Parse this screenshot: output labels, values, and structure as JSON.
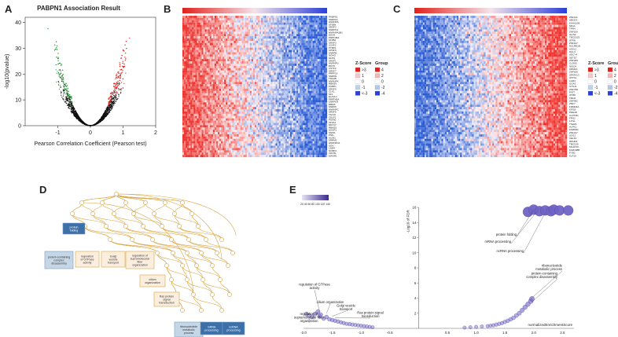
{
  "panels": {
    "a": "A",
    "b": "B",
    "c": "C",
    "d": "D",
    "e": "E"
  },
  "colors": {
    "red": "#e0201b",
    "blue": "#2c3fd6",
    "green": "#1d8a2e",
    "tan": "#d9a441",
    "node_blue": "#3d6fa8",
    "node_lightblue": "#c5d7e6",
    "node_cream": "#fbeede",
    "bubble": "#6f63c4"
  },
  "chart_data": [
    {
      "id": "A",
      "type": "scatter",
      "title": "PABPN1 Association Result",
      "xlabel": "Pearson Correlation Coefficient (Pearson test)",
      "ylabel": "-log10(pvalue)",
      "xlim": [
        -2,
        2
      ],
      "ylim": [
        0,
        42
      ],
      "xticks": [
        "-1",
        "0",
        "1",
        "2"
      ],
      "yticks": [
        "0",
        "10",
        "20",
        "30",
        "40"
      ],
      "series": [
        {
          "color": "#1d8a2e",
          "side": "negative"
        },
        {
          "color": "#e0201b",
          "side": "positive"
        },
        {
          "color": "#111111",
          "side": "not significant"
        }
      ]
    },
    {
      "id": "B",
      "type": "heatmap",
      "legend_zscore_title": "Z-Score",
      "legend_group_title": "Group",
      "zscore_items": [
        ">3",
        "1",
        "0",
        "-1",
        "<-3"
      ],
      "group_items": [
        "4",
        "2",
        "0",
        "-2",
        "-4"
      ],
      "gene_labels": [
        "PABPN1",
        "SNRPA1",
        "HNRNPA",
        "SF3B4",
        "SRSF2",
        "SNRPD1",
        "HNRNPA2B1",
        "DHX9",
        "PRPF38A",
        "SF3B2",
        "SRSF3",
        "U2AF1",
        "PTBP1",
        "CPSF6",
        "SNRPB",
        "NONO",
        "SFPQ",
        "SRSF1",
        "HNRNPU",
        "DDX5",
        "CSTF2",
        "SRSF7",
        "PRPF19",
        "SNRPE",
        "TRA2B",
        "HNRNPK",
        "RBM39",
        "PCBP1",
        "SRSF9",
        "CLK1",
        "SF1",
        "ELAVL1",
        "PRPF40A",
        "SNRPD3",
        "RBMX",
        "SNRPF",
        "HNRNPC",
        "SRSF6",
        "TAF15",
        "CELF1",
        "PUF60",
        "SF3A1",
        "DDX17",
        "RBM25",
        "SUGP1",
        "SNW1",
        "PNN",
        "ACIN1",
        "SRRM1",
        "HNRNPH1",
        "SON",
        "LSM4",
        "NCBP2",
        "CDC5L",
        "EWSR1"
      ]
    },
    {
      "id": "C",
      "type": "heatmap",
      "legend_zscore_title": "Z-Score",
      "legend_group_title": "Group",
      "zscore_items": [
        ">3",
        "1",
        "0",
        "-1",
        "<-3"
      ],
      "group_items": [
        "4",
        "2",
        "0",
        "-2",
        "-4"
      ],
      "gene_labels": [
        "ZNF141",
        "ABCD3",
        "KIAA1109",
        "MIGA",
        "TPR4",
        "ZNF100",
        "GLIS2",
        "TBC1D23",
        "ATRN",
        "ZNF197",
        "DCLRE1B",
        "ASXL1",
        "DCL4",
        "ADCY4",
        "SETD7",
        "ZNF266",
        "CLDN3",
        "NISCH",
        "KDM4A",
        "ZNF629",
        "SPATA13",
        "ATP7A",
        "LGR4",
        "GGA3",
        "SYNJ2",
        "ZNF75D",
        "PIGT",
        "IFT88",
        "TMC6",
        "ZNF592",
        "ZNF7",
        "FRMD4A",
        "KIF1B",
        "PDE4D",
        "CLPTM1",
        "FRS2",
        "LIX1L",
        "TSHZ1",
        "ALPK1",
        "FAM83G",
        "ZNF217",
        "SOS1",
        "CELF2",
        "DDHD2",
        "TBC1D9",
        "MGAT4C",
        "FAM168B",
        "FYB2",
        "KLF16"
      ]
    },
    {
      "id": "D",
      "type": "diagram",
      "nodes_highlighted": [
        {
          "label": "protein folding",
          "style": "blue"
        },
        {
          "label": "protein-containing complex disassembly",
          "style": "lightblue"
        },
        {
          "label": "regulation of GTPase activity",
          "style": "cream"
        },
        {
          "label": "Golgi vesicle transport",
          "style": "cream"
        },
        {
          "label": "regulation of supramolecular fiber organization",
          "style": "cream"
        },
        {
          "label": "cilium organization",
          "style": "cream"
        },
        {
          "label": "Ras protein signal transduction",
          "style": "cream"
        },
        {
          "label": "ribonucleotide metabolic process",
          "style": "lightblue"
        },
        {
          "label": "mRNA processing",
          "style": "blue"
        },
        {
          "label": "ncRNA processing",
          "style": "blue"
        }
      ]
    },
    {
      "id": "E",
      "type": "scatter",
      "xlabel": "normalizedEnrichmentScore",
      "ylabel": "-Log10 of FDR",
      "xlim": [
        -2.0,
        2.7
      ],
      "ylim": [
        0,
        16
      ],
      "xticks": [
        "-2.0",
        "-1.5",
        "-1.0",
        "-0.5",
        "0.5",
        "1.0",
        "1.5",
        "2.0",
        "2.5"
      ],
      "yticks": [
        "2",
        "4",
        "6",
        "8",
        "10",
        "12",
        "14",
        "16"
      ],
      "colorbar_label": "20 40 60 80 100 120 140",
      "annotations": [
        {
          "label": "protein folding",
          "x": 2.0,
          "y": 15.7
        },
        {
          "label": "mRNA processing",
          "x": 2.05,
          "y": 15.4
        },
        {
          "label": "ncRNA processing",
          "x": 2.2,
          "y": 15.3
        },
        {
          "label": "ribonucleotide metabolic process",
          "x": 1.95,
          "y": 3.9
        },
        {
          "label": "protein-containing complex disassembly",
          "x": 1.97,
          "y": 3.5
        },
        {
          "label": "regulation of GTPase activity",
          "x": -1.72,
          "y": 2.2
        },
        {
          "label": "cilium organization",
          "x": -1.6,
          "y": 2.0
        },
        {
          "label": "Golgi vesicle transport",
          "x": -1.5,
          "y": 1.6
        },
        {
          "label": "Ras protein signal transduction",
          "x": -1.45,
          "y": 1.4
        },
        {
          "label": "regulation of supramolecular fiber organization",
          "x": -1.9,
          "y": 1.5
        }
      ],
      "series": [
        {
          "color": "#6f63c4",
          "x": [
            -1.95,
            -1.9,
            -1.85,
            -1.8,
            -1.75,
            -1.72,
            -1.7,
            -1.65,
            -1.6,
            -1.55,
            -1.5,
            -1.45,
            -1.4,
            -1.35,
            -1.3,
            -1.25,
            -1.2,
            -1.15,
            -1.1,
            -1.05,
            -1.0,
            -0.95,
            -0.9,
            -0.85,
            -0.8
          ],
          "y": [
            1.9,
            1.7,
            1.5,
            1.9,
            2.2,
            1.6,
            1.8,
            1.3,
            1.5,
            1.2,
            1.1,
            1.0,
            0.9,
            0.8,
            0.7,
            0.6,
            0.55,
            0.5,
            0.45,
            0.4,
            0.35,
            0.3,
            0.25,
            0.2,
            0.15
          ]
        },
        {
          "color": "#6f63c4",
          "x": [
            0.8,
            0.9,
            1.0,
            1.1,
            1.2,
            1.25,
            1.3,
            1.35,
            1.4,
            1.45,
            1.5,
            1.55,
            1.6,
            1.65,
            1.7,
            1.75,
            1.8,
            1.85,
            1.9,
            1.95,
            1.97
          ],
          "y": [
            0.1,
            0.15,
            0.2,
            0.25,
            0.3,
            0.35,
            0.4,
            0.5,
            0.6,
            0.7,
            0.85,
            1.0,
            1.2,
            1.4,
            1.7,
            2.0,
            2.4,
            2.8,
            3.2,
            3.6,
            3.9
          ]
        },
        {
          "color": "#6f63c4",
          "x": [
            1.9,
            2.0,
            2.1,
            2.2,
            2.3,
            2.35,
            2.45,
            2.6
          ],
          "y": [
            15.4,
            15.7,
            15.5,
            15.6,
            15.5,
            15.7,
            15.6,
            15.6
          ]
        }
      ]
    }
  ]
}
